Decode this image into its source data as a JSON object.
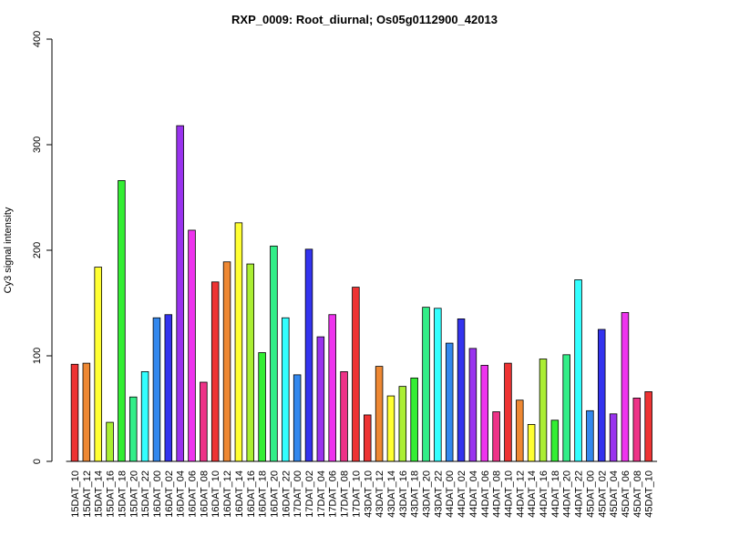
{
  "chart_data": {
    "type": "bar",
    "title": "RXP_0009: Root_diurnal; Os05g0112900_42013",
    "xlabel": "",
    "ylabel": "Cy3 signal intensity",
    "ylim": [
      0,
      400
    ],
    "yticks": [
      0,
      100,
      200,
      300,
      400
    ],
    "grid": false,
    "categories": [
      "15DAT_10",
      "15DAT_12",
      "15DAT_14",
      "15DAT_16",
      "15DAT_18",
      "15DAT_20",
      "15DAT_22",
      "16DAT_00",
      "16DAT_02",
      "16DAT_04",
      "16DAT_06",
      "16DAT_08",
      "16DAT_10",
      "16DAT_12",
      "16DAT_14",
      "16DAT_16",
      "16DAT_18",
      "16DAT_20",
      "16DAT_22",
      "17DAT_00",
      "17DAT_02",
      "17DAT_04",
      "17DAT_06",
      "17DAT_08",
      "17DAT_10",
      "43DAT_10",
      "43DAT_12",
      "43DAT_14",
      "43DAT_16",
      "43DAT_18",
      "43DAT_20",
      "43DAT_22",
      "44DAT_00",
      "44DAT_02",
      "44DAT_04",
      "44DAT_06",
      "44DAT_08",
      "44DAT_10",
      "44DAT_12",
      "44DAT_14",
      "44DAT_16",
      "44DAT_18",
      "44DAT_20",
      "44DAT_22",
      "45DAT_00",
      "45DAT_02",
      "45DAT_04",
      "45DAT_06",
      "45DAT_08",
      "45DAT_10"
    ],
    "values": [
      92,
      93,
      184,
      37,
      266,
      61,
      85,
      136,
      139,
      318,
      219,
      75,
      170,
      189,
      226,
      187,
      103,
      204,
      136,
      82,
      201,
      118,
      139,
      85,
      165,
      44,
      90,
      62,
      71,
      79,
      146,
      145,
      112,
      135,
      107,
      91,
      47,
      93,
      58,
      35,
      97,
      39,
      101,
      172,
      48,
      125,
      45,
      141,
      60,
      66
    ],
    "colors": [
      "#ee3333",
      "#ee8833",
      "#ffff33",
      "#aaee33",
      "#33ee33",
      "#33ee88",
      "#33ffff",
      "#3388ee",
      "#3333ee",
      "#9933ee",
      "#ee33ee",
      "#ee3388",
      "#ee3333",
      "#ee8833",
      "#ffff33",
      "#aaee33",
      "#33ee33",
      "#33ee88",
      "#33ffff",
      "#3388ee",
      "#3333ee",
      "#9933ee",
      "#ee33ee",
      "#ee3388",
      "#ee3333",
      "#ee3333",
      "#ee8833",
      "#ffff33",
      "#aaee33",
      "#33ee33",
      "#33ee88",
      "#33ffff",
      "#3388ee",
      "#3333ee",
      "#9933ee",
      "#ee33ee",
      "#ee3388",
      "#ee3333",
      "#ee8833",
      "#ffff33",
      "#aaee33",
      "#33ee33",
      "#33ee88",
      "#33ffff",
      "#3388ee",
      "#3333ee",
      "#9933ee",
      "#ee33ee",
      "#ee3388",
      "#ee3333"
    ]
  }
}
